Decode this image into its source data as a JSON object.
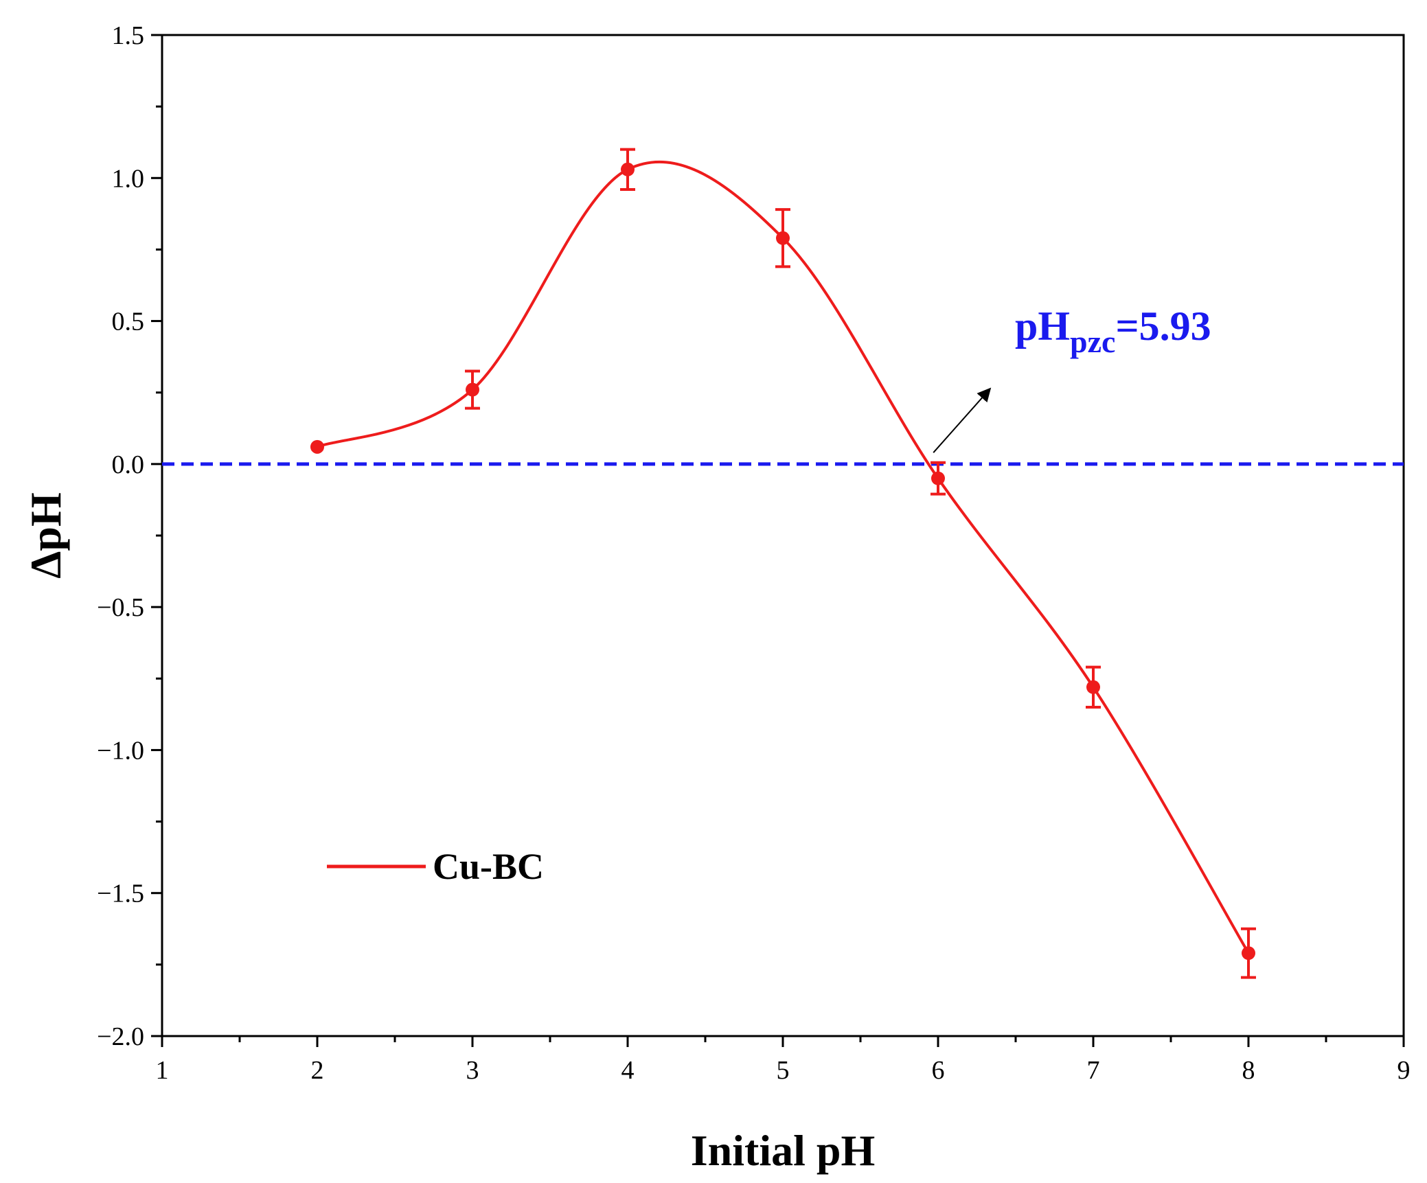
{
  "chart_data": {
    "type": "line",
    "title": "",
    "xlabel": "Initial pH",
    "ylabel": "ΔpH",
    "xlim": [
      1,
      9
    ],
    "ylim": [
      -2.0,
      1.5
    ],
    "x_ticks": [
      "1",
      "2",
      "3",
      "4",
      "5",
      "6",
      "7",
      "8",
      "9"
    ],
    "y_ticks": [
      "1.5",
      "1.0",
      "0.5",
      "0.0",
      "−0.5",
      "−1.0",
      "−1.5",
      "−2.0"
    ],
    "grid": false,
    "legend_position": "bottom-left",
    "series": [
      {
        "name": "Cu-BC",
        "color": "#ee1c1c",
        "smoothed": true,
        "points": [
          {
            "x": 2,
            "y": 0.06,
            "err": 0.0
          },
          {
            "x": 3,
            "y": 0.26,
            "err": 0.065
          },
          {
            "x": 4,
            "y": 1.03,
            "err": 0.07
          },
          {
            "x": 5,
            "y": 0.79,
            "err": 0.1
          },
          {
            "x": 6,
            "y": -0.05,
            "err": 0.055
          },
          {
            "x": 7,
            "y": -0.78,
            "err": 0.07
          },
          {
            "x": 8,
            "y": -1.71,
            "err": 0.085
          }
        ]
      }
    ],
    "reference_line": {
      "y": 0.0,
      "style": "dashed",
      "color": "#1a1aee"
    },
    "annotation": {
      "main": "pH",
      "subscript": "pzc",
      "value": "=5.93",
      "color": "#1a1aee",
      "arrow_from": {
        "x": 5.97,
        "y": 0.04
      },
      "arrow_to": {
        "x": 6.33,
        "y": 0.26
      }
    }
  }
}
